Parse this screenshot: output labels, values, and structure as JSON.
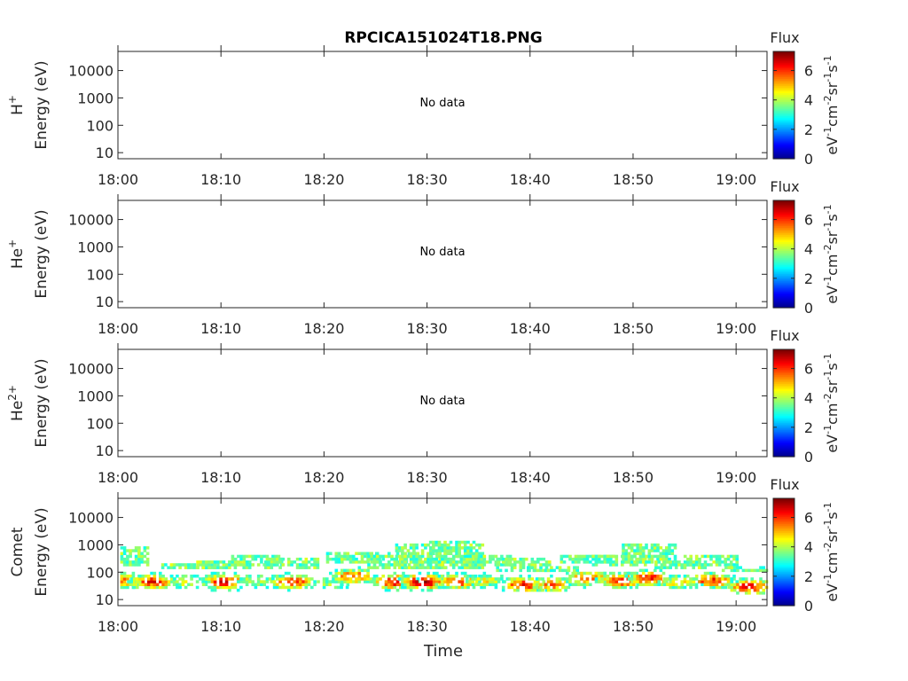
{
  "title": "RPCICA151024T18.PNG",
  "colors": {
    "axis": "#262626",
    "colormap": [
      "#00008f",
      "#0000ff",
      "#0080ff",
      "#00ffff",
      "#80ff80",
      "#ffff00",
      "#ff8000",
      "#ff0000",
      "#800000"
    ]
  },
  "chart_data": {
    "type": "heatmap",
    "xlabel": "Time",
    "time_range": [
      "18:00",
      "19:03"
    ],
    "x_ticks": [
      "18:00",
      "18:10",
      "18:20",
      "18:30",
      "18:40",
      "18:50",
      "19:00"
    ],
    "y_scale": "log",
    "y_ticks": [
      "10",
      "100",
      "1000",
      "10000"
    ],
    "ylim": [
      6,
      50000
    ],
    "colorbar": {
      "title": "Flux",
      "ticks": [
        "0",
        "2",
        "4",
        "6"
      ],
      "range": [
        0,
        7.3
      ],
      "unit_base": [
        "eV",
        "cm",
        "sr",
        "s"
      ],
      "unit_exp": [
        "-1",
        "-2",
        "-1",
        "-1"
      ]
    },
    "panels": [
      {
        "species": "H",
        "charge": "+",
        "ylabel": "Energy (eV)",
        "status": "No data"
      },
      {
        "species": "He",
        "charge": "+",
        "ylabel": "Energy (eV)",
        "status": "No data"
      },
      {
        "species": "He",
        "charge": "2+",
        "ylabel": "Energy (eV)",
        "status": "No data"
      },
      {
        "species": "Comet",
        "charge": "",
        "ylabel": "Energy (eV)",
        "status": "",
        "bursts": [
          {
            "t": 0.3,
            "emin": 25,
            "emax": 700,
            "peak": 50,
            "level": 5.5
          },
          {
            "t": 3.2,
            "emin": 25,
            "emax": 130,
            "peak": 45,
            "level": 6.2
          },
          {
            "t": 6.8,
            "emin": 15,
            "emax": 180,
            "peak": 45,
            "level": 4.5
          },
          {
            "t": 10.2,
            "emin": 15,
            "emax": 250,
            "peak": 45,
            "level": 6.3
          },
          {
            "t": 13.3,
            "emin": 20,
            "emax": 400,
            "peak": 50,
            "level": 4.2
          },
          {
            "t": 16.8,
            "emin": 20,
            "emax": 320,
            "peak": 45,
            "level": 6.0
          },
          {
            "t": 20.5,
            "emin": 15,
            "emax": 120,
            "peak": 40,
            "level": 3.8
          },
          {
            "t": 22.8,
            "emin": 30,
            "emax": 450,
            "peak": 70,
            "level": 5.8
          },
          {
            "t": 26.8,
            "emin": 15,
            "emax": 450,
            "peak": 45,
            "level": 6.4
          },
          {
            "t": 29.5,
            "emin": 20,
            "emax": 900,
            "peak": 45,
            "level": 6.9
          },
          {
            "t": 32.8,
            "emin": 25,
            "emax": 1300,
            "peak": 45,
            "level": 6.0
          },
          {
            "t": 35.5,
            "emin": 20,
            "emax": 400,
            "peak": 50,
            "level": 4.5
          },
          {
            "t": 39.3,
            "emin": 20,
            "emax": 300,
            "peak": 35,
            "level": 6.2
          },
          {
            "t": 42.0,
            "emin": 15,
            "emax": 150,
            "peak": 35,
            "level": 5.5
          },
          {
            "t": 45.5,
            "emin": 20,
            "emax": 420,
            "peak": 60,
            "level": 5.8
          },
          {
            "t": 48.6,
            "emin": 20,
            "emax": 350,
            "peak": 50,
            "level": 6.3
          },
          {
            "t": 51.5,
            "emin": 20,
            "emax": 900,
            "peak": 60,
            "level": 6.0
          },
          {
            "t": 54.4,
            "emin": 15,
            "emax": 220,
            "peak": 45,
            "level": 4.8
          },
          {
            "t": 57.5,
            "emin": 20,
            "emax": 380,
            "peak": 50,
            "level": 6.1
          },
          {
            "t": 61.2,
            "emin": 15,
            "emax": 150,
            "peak": 30,
            "level": 6.3
          }
        ]
      }
    ]
  }
}
